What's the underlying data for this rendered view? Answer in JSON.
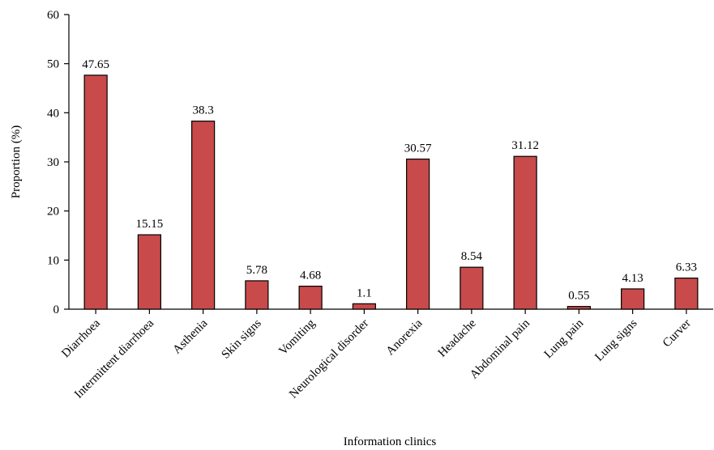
{
  "chart_data": {
    "type": "bar",
    "title": "",
    "xlabel": "Information clinics",
    "ylabel": "Proportion (%)",
    "ylim": [
      0,
      60
    ],
    "yticks": [
      0,
      10,
      20,
      30,
      40,
      50,
      60
    ],
    "grid": false,
    "legend": "none",
    "bar_color": "#c84a4a",
    "categories": [
      "Diarrhoea",
      "Intermittent diarrhoea",
      "Asthenia",
      "Skin signs",
      "Vomiting",
      "Neurological disorder",
      "Anorexia",
      "Headache",
      "Abdominal pain",
      "Lung pain",
      "Lung signs",
      "Curver"
    ],
    "values": [
      47.65,
      15.15,
      38.3,
      5.78,
      4.68,
      1.1,
      30.57,
      8.54,
      31.12,
      0.55,
      4.13,
      6.33
    ],
    "data_labels": [
      "47.65",
      "15.15",
      "38.3",
      "5.78",
      "4.68",
      "1.1",
      "30.57",
      "8.54",
      "31.12",
      "0.55",
      "4.13",
      "6.33"
    ]
  }
}
